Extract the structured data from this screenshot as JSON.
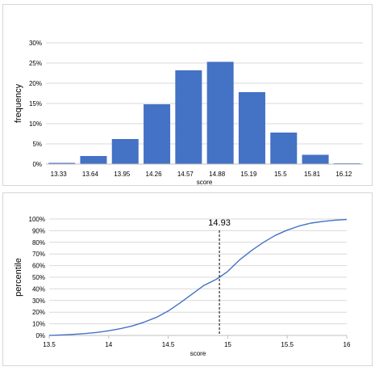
{
  "colors": {
    "bar": "#4472c4",
    "line": "#4472c4",
    "grid": "#d9d9d9",
    "axis": "#bfbfbf",
    "text": "#000000",
    "marker": "#000000"
  },
  "chart_data": [
    {
      "type": "bar",
      "categories": [
        "13.33",
        "13.64",
        "13.95",
        "14.26",
        "14.57",
        "14.88",
        "15.19",
        "15.5",
        "15.81",
        "16.12"
      ],
      "values": [
        0.3,
        2.0,
        6.2,
        14.8,
        23.2,
        25.3,
        17.8,
        7.8,
        2.3,
        0.2
      ],
      "xlabel": "score",
      "ylabel": "frequency",
      "ylim": [
        0,
        30
      ],
      "yticks": [
        "0%",
        "5%",
        "10%",
        "15%",
        "20%",
        "25%",
        "30%"
      ],
      "grid": true
    },
    {
      "type": "line",
      "xlabel": "score",
      "ylabel": "percentile",
      "xlim": [
        13.5,
        16
      ],
      "ylim": [
        0,
        100
      ],
      "xticks": [
        "13.5",
        "14",
        "14.5",
        "15",
        "15.5",
        "16"
      ],
      "yticks": [
        "0%",
        "10%",
        "20%",
        "30%",
        "40%",
        "50%",
        "60%",
        "70%",
        "80%",
        "90%",
        "100%"
      ],
      "grid": true,
      "series": [
        {
          "x": [
            13.5,
            13.6,
            13.7,
            13.8,
            13.9,
            14.0,
            14.1,
            14.2,
            14.3,
            14.4,
            14.5,
            14.6,
            14.7,
            14.8,
            14.9,
            14.93,
            15.0,
            15.1,
            15.2,
            15.3,
            15.4,
            15.5,
            15.6,
            15.7,
            15.8,
            15.9,
            16.0
          ],
          "y": [
            0.1,
            0.4,
            0.9,
            1.6,
            2.6,
            4.0,
            5.8,
            8.2,
            11.5,
            15.5,
            21.0,
            28.0,
            35.5,
            43.0,
            48.0,
            50.0,
            55.0,
            65.0,
            73.0,
            80.0,
            86.0,
            90.5,
            94.0,
            96.5,
            98.0,
            99.0,
            99.6
          ]
        }
      ],
      "annotation": {
        "x": 14.93,
        "label": "14.93"
      }
    }
  ]
}
